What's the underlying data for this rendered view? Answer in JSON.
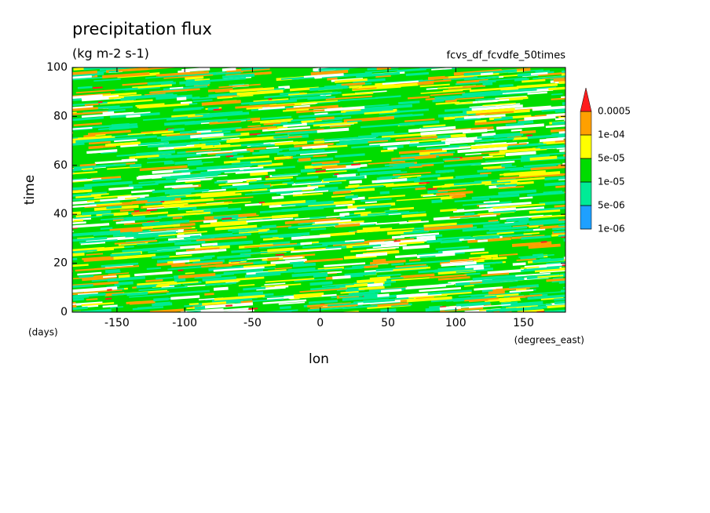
{
  "chart_data": {
    "type": "contour",
    "title": "precipitation flux",
    "subtitle": "(kg m-2 s-1)",
    "annotation": "fcvs_df_fcvdfe_50times",
    "x_label": "lon",
    "y_label": "time",
    "x_units": "(degrees_east)",
    "y_units": "(days)",
    "xlim": [
      -183,
      181
    ],
    "xticks": [
      -150,
      -100,
      -50,
      0,
      50,
      100,
      150
    ],
    "ylim": [
      0,
      100
    ],
    "yticks": [
      0,
      20,
      40,
      60,
      80,
      100
    ],
    "levels": [
      {
        "value": 1e-06,
        "label": "1e-06"
      },
      {
        "value": 5e-06,
        "label": "5e-06"
      },
      {
        "value": 1e-05,
        "label": "1e-05"
      },
      {
        "value": 5e-05,
        "label": "5e-05"
      },
      {
        "value": 0.0001,
        "label": "1e-04"
      },
      {
        "value": 0.0005,
        "label": "0.0005"
      }
    ],
    "colors": [
      "#1ea0ff",
      "#00eb96",
      "#00dc00",
      "#ffff00",
      "#ffa000",
      "#ff1e1e"
    ]
  }
}
